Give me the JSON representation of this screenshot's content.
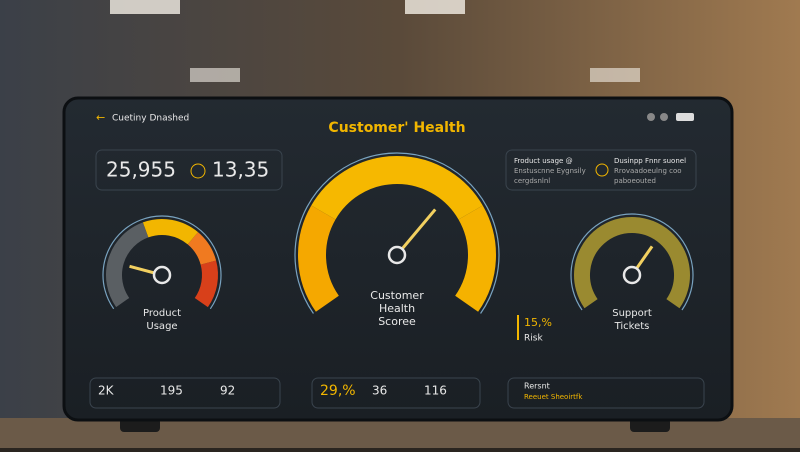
{
  "header": {
    "back": "Cuetiny Dnashed",
    "title": "Customer' Health"
  },
  "kpis": [
    "25,955",
    "13,35"
  ],
  "notes": [
    [
      "Froduct usage @",
      "Enstuscnne Eygnsily",
      "cergdsnlnl"
    ],
    [
      "Dusinpp Fnnr suonel",
      "Rrovaadoeulng coo",
      "paboeouted"
    ]
  ],
  "gauges": [
    [
      "Product",
      "Usage"
    ],
    [
      "Customer",
      "Health",
      "Scoree"
    ],
    [
      "Support",
      "Tickets"
    ]
  ],
  "risk": {
    "value": "15,%",
    "label": "Risk"
  },
  "footer_stats": [
    "2K",
    "195",
    "92",
    "29,%",
    "36",
    "116"
  ],
  "alert": [
    "Rersnt",
    "Reeuet Sheoirtfk"
  ]
}
